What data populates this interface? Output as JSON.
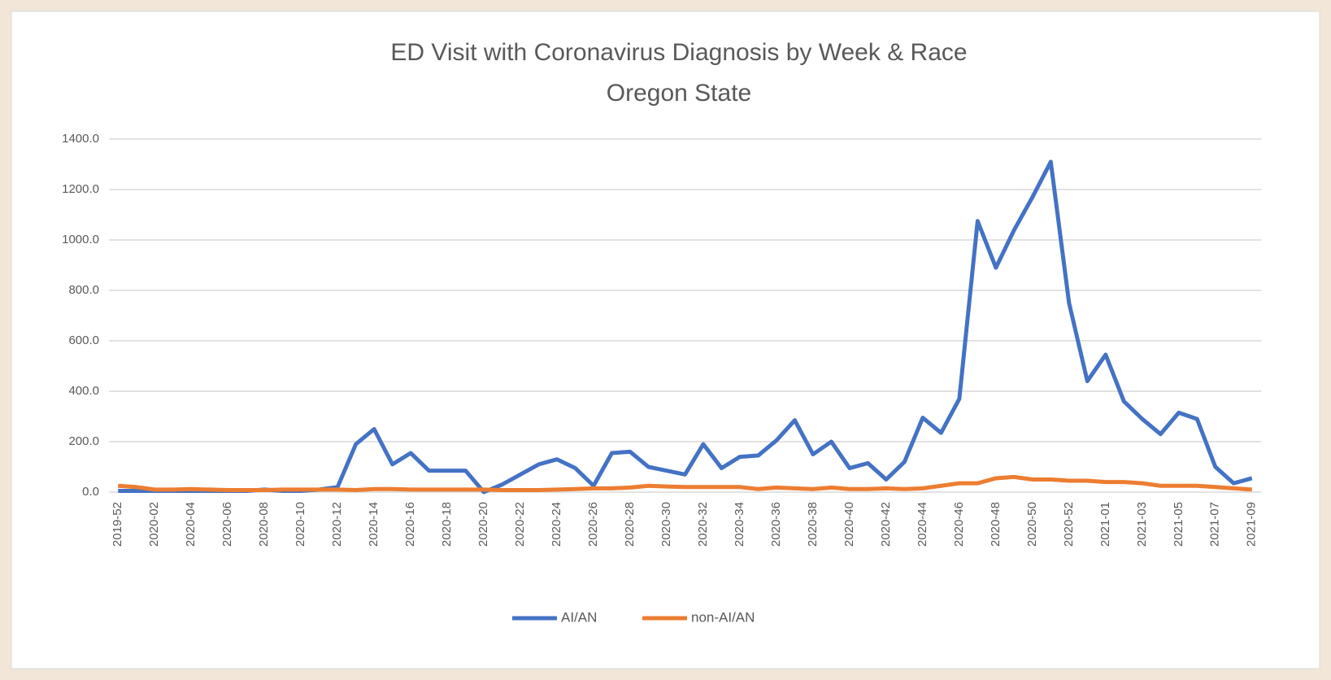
{
  "chart_data": {
    "type": "line",
    "title": "ED Visit with Coronavirus Diagnosis by Week & Race",
    "subtitle": "Oregon State",
    "categories": [
      "2019-52",
      null,
      "2020-02",
      null,
      "2020-04",
      null,
      "2020-06",
      null,
      "2020-08",
      null,
      "2020-10",
      null,
      "2020-12",
      null,
      "2020-14",
      null,
      "2020-16",
      null,
      "2020-18",
      null,
      "2020-20",
      null,
      "2020-22",
      null,
      "2020-24",
      null,
      "2020-26",
      null,
      "2020-28",
      null,
      "2020-30",
      null,
      "2020-32",
      null,
      "2020-34",
      null,
      "2020-36",
      null,
      "2020-38",
      null,
      "2020-40",
      null,
      "2020-42",
      null,
      "2020-44",
      null,
      "2020-46",
      null,
      "2020-48",
      null,
      "2020-50",
      null,
      "2020-52",
      null,
      "2021-01",
      null,
      "2021-03",
      null,
      "2021-05",
      null,
      "2021-07",
      null,
      "2021-09"
    ],
    "series": [
      {
        "name": "AI/AN",
        "color": "#4472c4",
        "values": [
          5,
          5,
          5,
          5,
          5,
          5,
          5,
          5,
          10,
          5,
          5,
          10,
          20,
          190,
          250,
          110,
          155,
          85,
          85,
          85,
          0,
          30,
          70,
          110,
          130,
          95,
          25,
          155,
          160,
          100,
          85,
          70,
          190,
          95,
          140,
          145,
          205,
          285,
          150,
          200,
          95,
          115,
          50,
          120,
          295,
          235,
          370,
          1075,
          890,
          1040,
          1170,
          1310,
          750,
          440,
          545,
          360,
          290,
          230,
          315,
          290,
          100,
          35,
          55
        ]
      },
      {
        "name": "non-AI/AN",
        "color": "#ed7d31",
        "values": [
          25,
          20,
          10,
          10,
          12,
          10,
          8,
          8,
          8,
          10,
          10,
          10,
          10,
          8,
          12,
          12,
          10,
          10,
          10,
          10,
          10,
          8,
          8,
          8,
          10,
          12,
          15,
          15,
          18,
          25,
          22,
          20,
          20,
          20,
          20,
          12,
          18,
          15,
          12,
          18,
          12,
          12,
          15,
          12,
          15,
          25,
          35,
          35,
          55,
          60,
          50,
          50,
          45,
          45,
          40,
          40,
          35,
          25,
          25,
          25,
          20,
          15,
          10
        ]
      }
    ],
    "ylim": [
      0,
      1400
    ],
    "yticks": [
      {
        "value": 0,
        "label": "0.0"
      },
      {
        "value": 200,
        "label": "200.0"
      },
      {
        "value": 400,
        "label": "400.0"
      },
      {
        "value": 600,
        "label": "600.0"
      },
      {
        "value": 800,
        "label": "800.0"
      },
      {
        "value": 1000,
        "label": "1000.0"
      },
      {
        "value": 1200,
        "label": "1200.0"
      },
      {
        "value": 1400,
        "label": "1400.0"
      }
    ],
    "grid": true,
    "legend": "bottom"
  }
}
